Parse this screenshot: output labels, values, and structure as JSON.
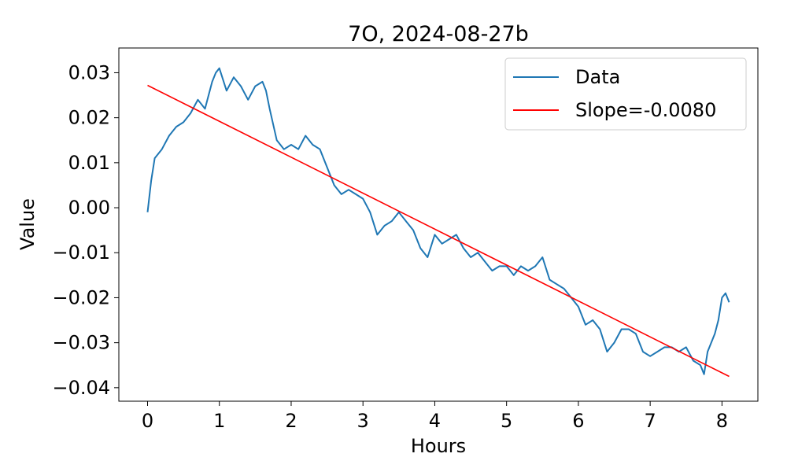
{
  "chart_data": {
    "type": "line",
    "title": "7O, 2024-08-27b",
    "xlabel": "Hours",
    "ylabel": "Value",
    "xlim": [
      -0.4,
      8.5
    ],
    "ylim": [
      -0.043,
      0.0355
    ],
    "x_ticks": [
      0,
      1,
      2,
      3,
      4,
      5,
      6,
      7,
      8
    ],
    "x_tick_labels": [
      "0",
      "1",
      "2",
      "3",
      "4",
      "5",
      "6",
      "7",
      "8"
    ],
    "y_ticks": [
      0.03,
      0.02,
      0.01,
      0.0,
      -0.01,
      -0.02,
      -0.03,
      -0.04
    ],
    "y_tick_labels": [
      "0.03",
      "0.02",
      "0.01",
      "0.00",
      "−0.01",
      "−0.02",
      "−0.03",
      "−0.04"
    ],
    "grid": false,
    "legend_position": "top-right",
    "series": [
      {
        "name": "Data",
        "color": "#1f77b4",
        "x": [
          0,
          0.05,
          0.1,
          0.2,
          0.3,
          0.4,
          0.5,
          0.6,
          0.7,
          0.8,
          0.9,
          0.95,
          1.0,
          1.1,
          1.2,
          1.3,
          1.4,
          1.5,
          1.6,
          1.65,
          1.7,
          1.8,
          1.9,
          2.0,
          2.1,
          2.2,
          2.3,
          2.4,
          2.5,
          2.6,
          2.7,
          2.8,
          2.9,
          3.0,
          3.1,
          3.2,
          3.3,
          3.4,
          3.5,
          3.6,
          3.7,
          3.8,
          3.9,
          4.0,
          4.1,
          4.2,
          4.3,
          4.4,
          4.5,
          4.6,
          4.7,
          4.8,
          4.9,
          5.0,
          5.1,
          5.2,
          5.3,
          5.4,
          5.5,
          5.6,
          5.7,
          5.8,
          5.9,
          6.0,
          6.1,
          6.2,
          6.3,
          6.4,
          6.5,
          6.6,
          6.7,
          6.8,
          6.9,
          7.0,
          7.1,
          7.2,
          7.3,
          7.4,
          7.5,
          7.6,
          7.7,
          7.75,
          7.8,
          7.9,
          7.95,
          8.0,
          8.05,
          8.1
        ],
        "y": [
          -0.001,
          0.006,
          0.011,
          0.013,
          0.016,
          0.018,
          0.019,
          0.021,
          0.024,
          0.022,
          0.028,
          0.03,
          0.031,
          0.026,
          0.029,
          0.027,
          0.024,
          0.027,
          0.028,
          0.026,
          0.022,
          0.015,
          0.013,
          0.014,
          0.013,
          0.016,
          0.014,
          0.013,
          0.009,
          0.005,
          0.003,
          0.004,
          0.003,
          0.002,
          -0.001,
          -0.006,
          -0.004,
          -0.003,
          -0.001,
          -0.003,
          -0.005,
          -0.009,
          -0.011,
          -0.006,
          -0.008,
          -0.007,
          -0.006,
          -0.009,
          -0.011,
          -0.01,
          -0.012,
          -0.014,
          -0.013,
          -0.013,
          -0.015,
          -0.013,
          -0.014,
          -0.013,
          -0.011,
          -0.016,
          -0.017,
          -0.018,
          -0.02,
          -0.022,
          -0.026,
          -0.025,
          -0.027,
          -0.032,
          -0.03,
          -0.027,
          -0.027,
          -0.028,
          -0.032,
          -0.033,
          -0.032,
          -0.031,
          -0.031,
          -0.032,
          -0.031,
          -0.034,
          -0.035,
          -0.037,
          -0.032,
          -0.028,
          -0.025,
          -0.02,
          -0.019,
          -0.021
        ]
      },
      {
        "name": "Slope=-0.0080",
        "color": "#ff0000",
        "x": [
          0,
          8.1
        ],
        "y": [
          0.0272,
          -0.0375
        ]
      }
    ]
  }
}
